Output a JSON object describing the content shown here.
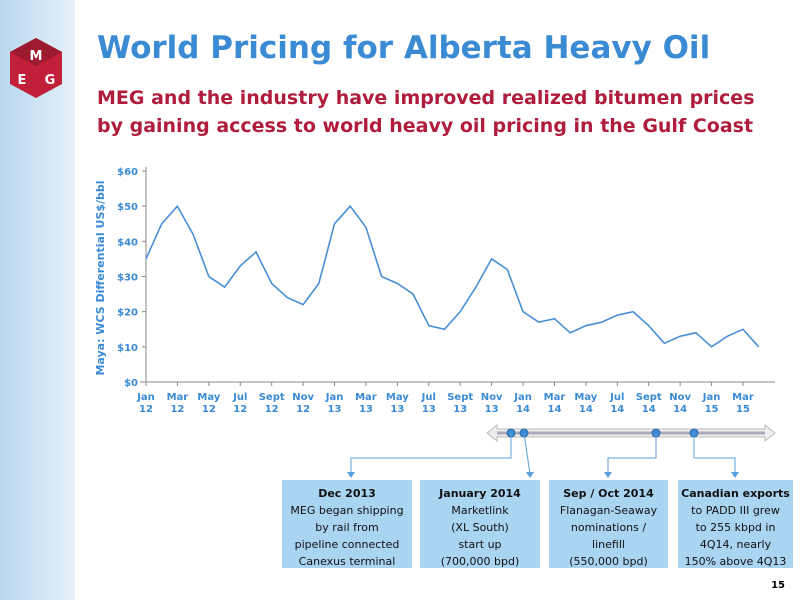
{
  "header": {
    "title": "World Pricing for Alberta Heavy Oil",
    "subtitle": [
      "MEG and the industry have improved realized bitumen prices",
      "by gaining access to world heavy oil pricing in the Gulf Coast"
    ]
  },
  "chart_data": {
    "type": "line",
    "ylabel": "Maya: WCS Differential US$/bbl",
    "categories": [
      "Jan 12",
      null,
      "Mar 12",
      null,
      "May 12",
      null,
      "Jul 12",
      null,
      "Sept 12",
      null,
      "Nov 12",
      null,
      "Jan 13",
      null,
      "Mar 13",
      null,
      "May 13",
      null,
      "Jul 13",
      null,
      "Sept 13",
      null,
      "Nov 13",
      null,
      "Jan 14",
      null,
      "Mar 14",
      null,
      "May 14",
      null,
      "Jul 14",
      null,
      "Sept 14",
      null,
      "Nov 14",
      null,
      "Jan 15",
      null,
      "Mar 15",
      null
    ],
    "series": [
      {
        "name": "Maya: WCS Differential",
        "color": "#4a8fd6",
        "values": [
          35,
          45,
          50,
          42,
          30,
          27,
          33,
          37,
          28,
          24,
          22,
          28,
          45,
          50,
          44,
          30,
          28,
          25,
          16,
          15,
          20,
          27,
          35,
          32,
          20,
          17,
          18,
          14,
          16,
          17,
          19,
          20,
          16,
          11,
          13,
          14,
          10,
          13,
          15,
          10
        ]
      }
    ],
    "ylim": [
      0,
      60
    ],
    "yticks": [
      {
        "value": 0,
        "label": "$0"
      },
      {
        "value": 10,
        "label": "$10"
      },
      {
        "value": 20,
        "label": "$20"
      },
      {
        "value": 30,
        "label": "$30"
      },
      {
        "value": 40,
        "label": "$40"
      },
      {
        "value": 50,
        "label": "$50"
      },
      {
        "value": 60,
        "label": "$60"
      }
    ],
    "grid": false
  },
  "callouts": [
    [
      "Dec 2013",
      "MEG began shipping",
      "by rail from",
      "pipeline connected",
      "Canexus terminal"
    ],
    [
      "January 2014",
      "Marketlink",
      "(XL South)",
      "start up",
      "(700,000 bpd)"
    ],
    [
      "Sep / Oct 2014",
      "Flanagan-Seaway",
      "nominations /",
      "linefill",
      "(550,000 bpd)"
    ],
    [
      "Canadian exports",
      "to PADD III grew",
      "to 255 kbpd in",
      "4Q14, nearly",
      "150% above 4Q13"
    ]
  ],
  "page_number": "15"
}
